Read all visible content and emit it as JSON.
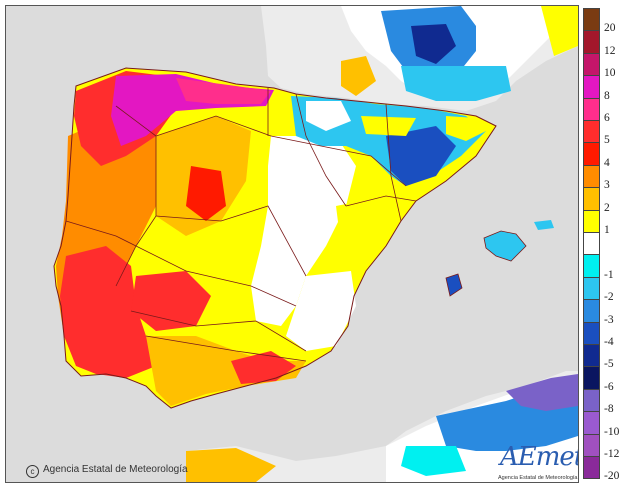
{
  "map": {
    "title": "",
    "copyright": "Agencia Estatal de Meteorología",
    "logo": {
      "brand_a": "A",
      "brand_e": "E",
      "brand_met": "met",
      "tagline": "Agencia Estatal de Meteorología"
    },
    "colors": {
      "sea": "#dcdcdc",
      "neutral": "#ffffff",
      "border": "#7a1a1a"
    }
  },
  "legend": {
    "items": [
      {
        "label": "20",
        "color": "#7a3b12"
      },
      {
        "label": "12",
        "color": "#a3172b"
      },
      {
        "label": "10",
        "color": "#c4166a"
      },
      {
        "label": "8",
        "color": "#e317c2"
      },
      {
        "label": "6",
        "color": "#ff2e8c"
      },
      {
        "label": "5",
        "color": "#ff2d2d"
      },
      {
        "label": "4",
        "color": "#ff1a00"
      },
      {
        "label": "3",
        "color": "#ff8c00"
      },
      {
        "label": "2",
        "color": "#ffc000"
      },
      {
        "label": "1",
        "color": "#ffff00"
      },
      {
        "label": "",
        "color": "#ffffff"
      },
      {
        "label": "-1",
        "color": "#00f0f0"
      },
      {
        "label": "-2",
        "color": "#2dc6f0"
      },
      {
        "label": "-3",
        "color": "#2a8ae0"
      },
      {
        "label": "-4",
        "color": "#1a4fc0"
      },
      {
        "label": "-5",
        "color": "#102a90"
      },
      {
        "label": "-6",
        "color": "#0a1560"
      },
      {
        "label": "-8",
        "color": "#7a62c8"
      },
      {
        "label": "-10",
        "color": "#9a5ad0"
      },
      {
        "label": "-12",
        "color": "#a050c0"
      },
      {
        "label": "-20",
        "color": "#8a2a9a"
      }
    ]
  }
}
